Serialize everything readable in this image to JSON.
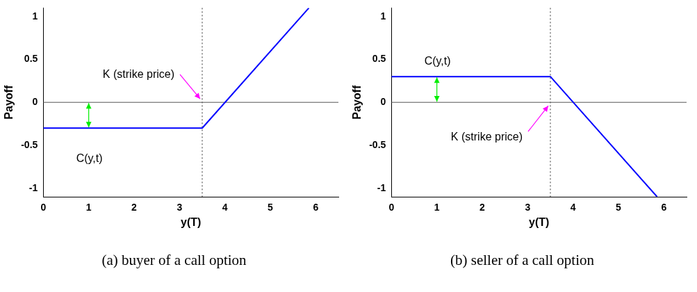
{
  "chart_data": [
    {
      "type": "line",
      "xlabel": "y(T)",
      "ylabel": "Payoff",
      "xlim": [
        0,
        6.5
      ],
      "ylim": [
        -1.1,
        1.1
      ],
      "xticks": [
        0,
        1,
        2,
        3,
        4,
        5,
        6
      ],
      "yticks": [
        -1,
        -0.5,
        0,
        0.5,
        1
      ],
      "series": [
        {
          "color": "#0000ff",
          "x": [
            0,
            3.5,
            5.85
          ],
          "values": [
            -0.3,
            -0.3,
            1.1
          ]
        }
      ],
      "ref_lines": [
        {
          "axis": "x",
          "value": 3.5,
          "color": "#333333",
          "line_style": "dotted",
          "label": "K (strike price)"
        },
        {
          "axis": "y",
          "value": 0,
          "color": "#555555",
          "line_style": "solid"
        }
      ],
      "annotations": [
        {
          "text": "C(y,t)",
          "x": 1,
          "y": -0.3
        },
        "(a) buyer of a call option"
      ]
    },
    {
      "type": "line",
      "xlabel": "y(T)",
      "ylabel": "Payoff",
      "xlim": [
        0,
        6.5
      ],
      "ylim": [
        -1.1,
        1.1
      ],
      "xticks": [
        0,
        1,
        2,
        3,
        4,
        5,
        6
      ],
      "yticks": [
        -1,
        -0.5,
        0,
        0.5,
        1
      ],
      "series": [
        {
          "color": "#0000ff",
          "x": [
            0,
            3.5,
            5.85
          ],
          "values": [
            0.3,
            0.3,
            -1.1
          ]
        }
      ],
      "ref_lines": [
        {
          "axis": "x",
          "value": 3.5,
          "color": "#333333",
          "line_style": "dotted",
          "label": "K (strike price)"
        },
        {
          "axis": "y",
          "value": 0,
          "color": "#555555",
          "line_style": "solid"
        }
      ],
      "annotations": [
        {
          "text": "C(y,t)",
          "x": 1,
          "y": 0.3
        },
        "(b) seller of a call option"
      ]
    }
  ]
}
